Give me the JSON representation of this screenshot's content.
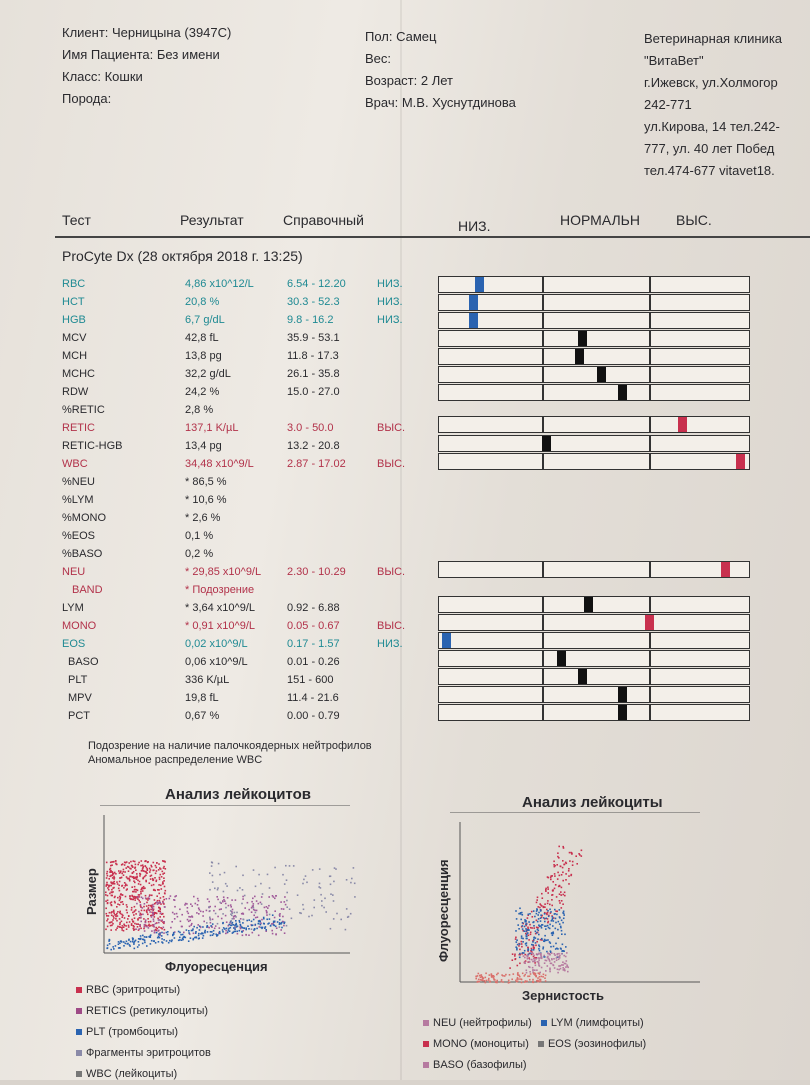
{
  "header": {
    "client": "Клиент: Черницына (3947С)",
    "patient": "Имя Пациента: Без имени",
    "class": "Класс: Кошки",
    "breed": "Порода:",
    "sex": "Пол: Самец",
    "weight": "Вес:",
    "age": "Возраст: 2 Лет",
    "doctor": "Врач: М.В. Хуснутдинова",
    "clinic": [
      "Ветеринарная клиника",
      "\"ВитаВет\"",
      "г.Ижевск, ул.Холмогор",
      "242-771",
      "ул.Кирова, 14 тел.242-",
      "777, ул. 40 лет Побед",
      "тел.474-677 vitavet18."
    ]
  },
  "columns": {
    "test": "Тест",
    "result": "Результат",
    "reference": "Справочный",
    "low": "НИЗ.",
    "normal": "НОРМАЛЬН",
    "high": "ВЫС."
  },
  "device": "ProCyte Dx (28 октября 2018 г. 13:25)",
  "rows": [
    {
      "test": "RBC",
      "result": "4,86 x10^12/L",
      "ref": "6.54 - 12.20",
      "flag": "НИЗ.",
      "color": "teal",
      "marker": 0.12,
      "marker_color": "blue"
    },
    {
      "test": "HCT",
      "result": "20,8 %",
      "ref": "30.3 - 52.3",
      "flag": "НИЗ.",
      "color": "teal",
      "marker": 0.1,
      "marker_color": "blue"
    },
    {
      "test": "HGB",
      "result": "6,7 g/dL",
      "ref": "9.8 - 16.2",
      "flag": "НИЗ.",
      "color": "teal",
      "marker": 0.1,
      "marker_color": "blue"
    },
    {
      "test": "MCV",
      "result": "42,8 fL",
      "ref": "35.9 - 53.1",
      "flag": "",
      "color": "blk",
      "marker": 0.46,
      "marker_color": "blk"
    },
    {
      "test": "MCH",
      "result": "13,8 pg",
      "ref": "11.8 - 17.3",
      "flag": "",
      "color": "blk",
      "marker": 0.45,
      "marker_color": "blk"
    },
    {
      "test": "MCHC",
      "result": "32,2 g/dL",
      "ref": "26.1 - 35.8",
      "flag": "",
      "color": "blk",
      "marker": 0.52,
      "marker_color": "blk"
    },
    {
      "test": "RDW",
      "result": "24,2 %",
      "ref": "15.0 - 27.0",
      "flag": "",
      "color": "blk",
      "marker": 0.59,
      "marker_color": "blk"
    },
    {
      "test": "%RETIC",
      "result": "2,8 %",
      "ref": "",
      "flag": "",
      "color": "blk",
      "marker": null,
      "marker_color": ""
    },
    {
      "test": "RETIC",
      "result": "137,1 K/µL",
      "ref": "3.0 - 50.0",
      "flag": "ВЫС.",
      "color": "red",
      "marker": 0.79,
      "marker_color": "red"
    },
    {
      "test": "RETIC-HGB",
      "result": "13,4 pg",
      "ref": "13.2 - 20.8",
      "flag": "",
      "color": "blk",
      "marker": 0.34,
      "marker_color": "blk"
    },
    {
      "test": "WBC",
      "result": "34,48 x10^9/L",
      "ref": "2.87 - 17.02",
      "flag": "ВЫС.",
      "color": "red",
      "marker": 0.98,
      "marker_color": "red"
    },
    {
      "test": "%NEU",
      "result": "* 86,5 %",
      "ref": "",
      "flag": "",
      "color": "blk",
      "marker": null,
      "marker_color": ""
    },
    {
      "test": "%LYM",
      "result": "* 10,6 %",
      "ref": "",
      "flag": "",
      "color": "blk",
      "marker": null,
      "marker_color": ""
    },
    {
      "test": "%MONO",
      "result": "* 2,6 %",
      "ref": "",
      "flag": "",
      "color": "blk",
      "marker": null,
      "marker_color": ""
    },
    {
      "test": "%EOS",
      "result": "0,1 %",
      "ref": "",
      "flag": "",
      "color": "blk",
      "marker": null,
      "marker_color": ""
    },
    {
      "test": "%BASO",
      "result": "0,2 %",
      "ref": "",
      "flag": "",
      "color": "blk",
      "marker": null,
      "marker_color": ""
    },
    {
      "test": "NEU",
      "result": "* 29,85 x10^9/L",
      "ref": "2.30 - 10.29",
      "flag": "ВЫС.",
      "color": "red",
      "marker": 0.93,
      "marker_color": "red"
    },
    {
      "test": "BAND",
      "result": "* Подозрение",
      "ref": "",
      "flag": "",
      "color": "red",
      "marker": null,
      "marker_color": ""
    },
    {
      "test": "LYM",
      "result": "* 3,64 x10^9/L",
      "ref": "0.92 - 6.88",
      "flag": "",
      "color": "blk",
      "marker": 0.48,
      "marker_color": "blk"
    },
    {
      "test": "MONO",
      "result": "* 0,91 x10^9/L",
      "ref": "0.05 - 0.67",
      "flag": "ВЫС.",
      "color": "red",
      "marker": 0.68,
      "marker_color": "red"
    },
    {
      "test": "EOS",
      "result": "0,02 x10^9/L",
      "ref": "0.17 - 1.57",
      "flag": "НИЗ.",
      "color": "teal",
      "marker": 0.01,
      "marker_color": "blue"
    },
    {
      "test": "BASO",
      "result": "0,06 x10^9/L",
      "ref": "0.01 - 0.26",
      "flag": "",
      "color": "blk",
      "marker": 0.39,
      "marker_color": "blk"
    },
    {
      "test": "PLT",
      "result": "336 K/µL",
      "ref": "151 - 600",
      "flag": "",
      "color": "blk",
      "marker": 0.46,
      "marker_color": "blk"
    },
    {
      "test": "MPV",
      "result": "19,8 fL",
      "ref": "11.4 - 21.6",
      "flag": "",
      "color": "blk",
      "marker": 0.59,
      "marker_color": "blk"
    },
    {
      "test": "PCT",
      "result": "0,67 %",
      "ref": "0.00 - 0.79",
      "flag": "",
      "color": "blk",
      "marker": 0.59,
      "marker_color": "blk"
    }
  ],
  "notes": [
    "Подозрение на наличие палочкоядерных нейтрофилов",
    "Аномальное распределение WBC"
  ],
  "plot_left": {
    "title": "Анализ лейкоцитов",
    "ylabel": "Размер",
    "xlabel": "Флуоресценция"
  },
  "plot_right": {
    "title": "Анализ лейкоциты",
    "ylabel": "Флуоресценция",
    "xlabel": "Зернистость"
  },
  "legend_left": [
    {
      "label": "RBC (эритроциты)",
      "color": "#c8304e"
    },
    {
      "label": "RETICS (ретикулоциты)",
      "color": "#9e4a86"
    },
    {
      "label": "PLT (тромбоциты)",
      "color": "#2a63b0"
    },
    {
      "label": "Фрагменты эритроцитов",
      "color": "#8a8aa8"
    },
    {
      "label": "WBC (лейкоциты)",
      "color": "#777"
    }
  ],
  "legend_right": [
    {
      "label": "NEU (нейтрофилы)",
      "color": "#b67aa0"
    },
    {
      "label": "LYM (лимфоциты)",
      "color": "#2a63b0"
    },
    {
      "label": "MONO (моноциты)",
      "color": "#c8304e"
    },
    {
      "label": "EOS (эозинофилы)",
      "color": "#777"
    },
    {
      "label": "BASO (базофилы)",
      "color": "#b67aa0"
    }
  ],
  "colors": {
    "teal": "#1f8a93",
    "red": "#b2324a",
    "marker_blue": "#2a63b0",
    "marker_red": "#c8304e"
  }
}
